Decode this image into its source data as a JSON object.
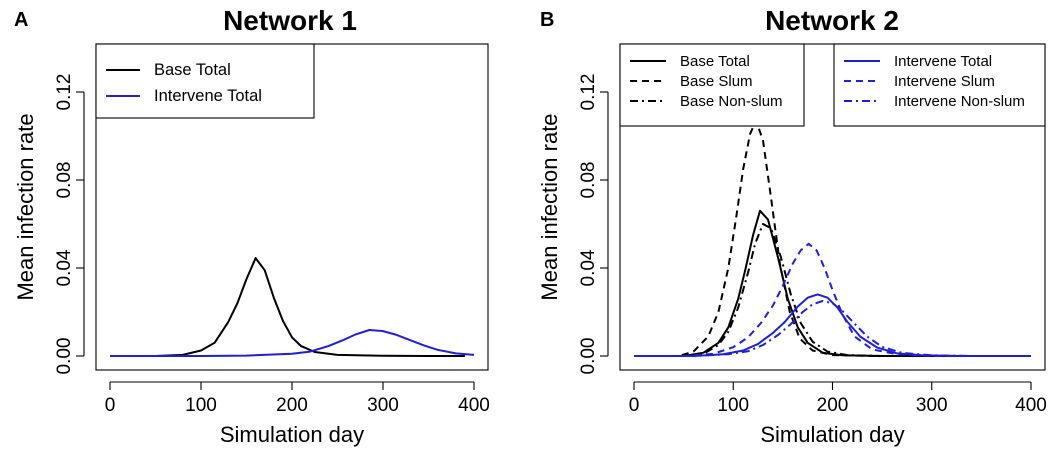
{
  "chart_data": [
    {
      "panel_label": "A",
      "type": "line",
      "title": "Network 1",
      "xlabel": "Simulation day",
      "ylabel": "Mean infection rate",
      "xlim": [
        0,
        400
      ],
      "ylim": [
        0,
        0.14
      ],
      "xticks": [
        0,
        100,
        200,
        300,
        400
      ],
      "yticks": [
        0.0,
        0.04,
        0.08,
        0.12
      ],
      "xtick_labels": [
        "0",
        "100",
        "200",
        "300",
        "400"
      ],
      "ytick_labels": [
        "0.00",
        "0.04",
        "0.08",
        "0.12"
      ],
      "legend_position": "top-left",
      "series": [
        {
          "name": "Base Total",
          "color": "#000000",
          "dash": "solid",
          "x": [
            0,
            50,
            80,
            100,
            115,
            130,
            140,
            150,
            160,
            170,
            180,
            190,
            200,
            210,
            225,
            250,
            300,
            350,
            390
          ],
          "values": [
            0.0,
            0.0,
            0.0005,
            0.0025,
            0.006,
            0.0155,
            0.024,
            0.035,
            0.0445,
            0.039,
            0.0265,
            0.016,
            0.0085,
            0.0045,
            0.0018,
            0.0005,
            0.0001,
            0.0,
            0.0
          ]
        },
        {
          "name": "Intervene Total",
          "color": "#1f1fd6",
          "dash": "solid",
          "x": [
            0,
            100,
            150,
            200,
            220,
            240,
            255,
            270,
            285,
            300,
            315,
            330,
            345,
            360,
            380,
            400
          ],
          "values": [
            0.0,
            0.0,
            0.0002,
            0.001,
            0.002,
            0.0045,
            0.007,
            0.0098,
            0.0118,
            0.0113,
            0.0096,
            0.0072,
            0.0048,
            0.0028,
            0.0012,
            0.0005
          ]
        }
      ]
    },
    {
      "panel_label": "B",
      "type": "line",
      "title": "Network 2",
      "xlabel": "Simulation day",
      "ylabel": "Mean infection rate",
      "xlim": [
        0,
        400
      ],
      "ylim": [
        0,
        0.14
      ],
      "xticks": [
        0,
        100,
        200,
        300,
        400
      ],
      "yticks": [
        0.0,
        0.04,
        0.08,
        0.12
      ],
      "xtick_labels": [
        "0",
        "100",
        "200",
        "300",
        "400"
      ],
      "ytick_labels": [
        "0.00",
        "0.04",
        "0.08",
        "0.12"
      ],
      "legend_position": "top",
      "series": [
        {
          "name": "Base Total",
          "color": "#000000",
          "dash": "solid",
          "x": [
            0,
            50,
            70,
            85,
            95,
            105,
            112,
            120,
            127,
            135,
            145,
            155,
            165,
            175,
            190,
            210,
            250,
            400
          ],
          "values": [
            0.0,
            0.0,
            0.0015,
            0.006,
            0.013,
            0.026,
            0.039,
            0.055,
            0.066,
            0.062,
            0.045,
            0.026,
            0.013,
            0.006,
            0.0015,
            0.0003,
            0.0,
            0.0
          ]
        },
        {
          "name": "Base Slum",
          "color": "#000000",
          "dash": "dashed",
          "x": [
            0,
            45,
            60,
            75,
            85,
            95,
            103,
            110,
            117,
            123,
            130,
            138,
            147,
            157,
            167,
            180,
            200,
            240,
            400
          ],
          "values": [
            0.0,
            0.0,
            0.002,
            0.009,
            0.02,
            0.04,
            0.063,
            0.085,
            0.101,
            0.107,
            0.098,
            0.072,
            0.042,
            0.02,
            0.008,
            0.0025,
            0.0004,
            0.0,
            0.0
          ]
        },
        {
          "name": "Base Non-slum",
          "color": "#000000",
          "dash": "dashdot",
          "x": [
            0,
            50,
            70,
            85,
            95,
            105,
            115,
            122,
            130,
            138,
            148,
            158,
            168,
            180,
            195,
            215,
            250,
            400
          ],
          "values": [
            0.0,
            0.0,
            0.001,
            0.005,
            0.011,
            0.022,
            0.038,
            0.051,
            0.06,
            0.058,
            0.045,
            0.028,
            0.015,
            0.0065,
            0.002,
            0.0004,
            0.0,
            0.0
          ]
        },
        {
          "name": "Intervene Total",
          "color": "#1f1fd6",
          "dash": "solid",
          "x": [
            0,
            60,
            90,
            110,
            125,
            140,
            152,
            165,
            175,
            185,
            195,
            205,
            215,
            228,
            245,
            265,
            290,
            330,
            400
          ],
          "values": [
            0.0,
            0.0,
            0.0008,
            0.0025,
            0.0055,
            0.0105,
            0.0155,
            0.0225,
            0.0265,
            0.028,
            0.0265,
            0.022,
            0.0155,
            0.0088,
            0.0038,
            0.0012,
            0.0003,
            0.0,
            0.0
          ]
        },
        {
          "name": "Intervene Slum",
          "color": "#1f1fd6",
          "dash": "dashed",
          "x": [
            0,
            50,
            80,
            100,
            115,
            128,
            140,
            150,
            160,
            168,
            176,
            184,
            192,
            200,
            210,
            222,
            240,
            265,
            300,
            400
          ],
          "values": [
            0.0,
            0.0,
            0.001,
            0.004,
            0.0085,
            0.015,
            0.023,
            0.032,
            0.042,
            0.048,
            0.051,
            0.048,
            0.04,
            0.03,
            0.019,
            0.009,
            0.003,
            0.0008,
            0.0,
            0.0
          ]
        },
        {
          "name": "Intervene Non-slum",
          "color": "#1f1fd6",
          "dash": "dashdot",
          "x": [
            0,
            60,
            95,
            115,
            130,
            145,
            158,
            170,
            180,
            190,
            200,
            210,
            222,
            235,
            250,
            270,
            300,
            340,
            400
          ],
          "values": [
            0.0,
            0.0,
            0.0008,
            0.0022,
            0.005,
            0.0095,
            0.0145,
            0.02,
            0.0235,
            0.025,
            0.024,
            0.0205,
            0.0148,
            0.0088,
            0.0042,
            0.0014,
            0.0003,
            0.0,
            0.0
          ]
        }
      ]
    }
  ]
}
